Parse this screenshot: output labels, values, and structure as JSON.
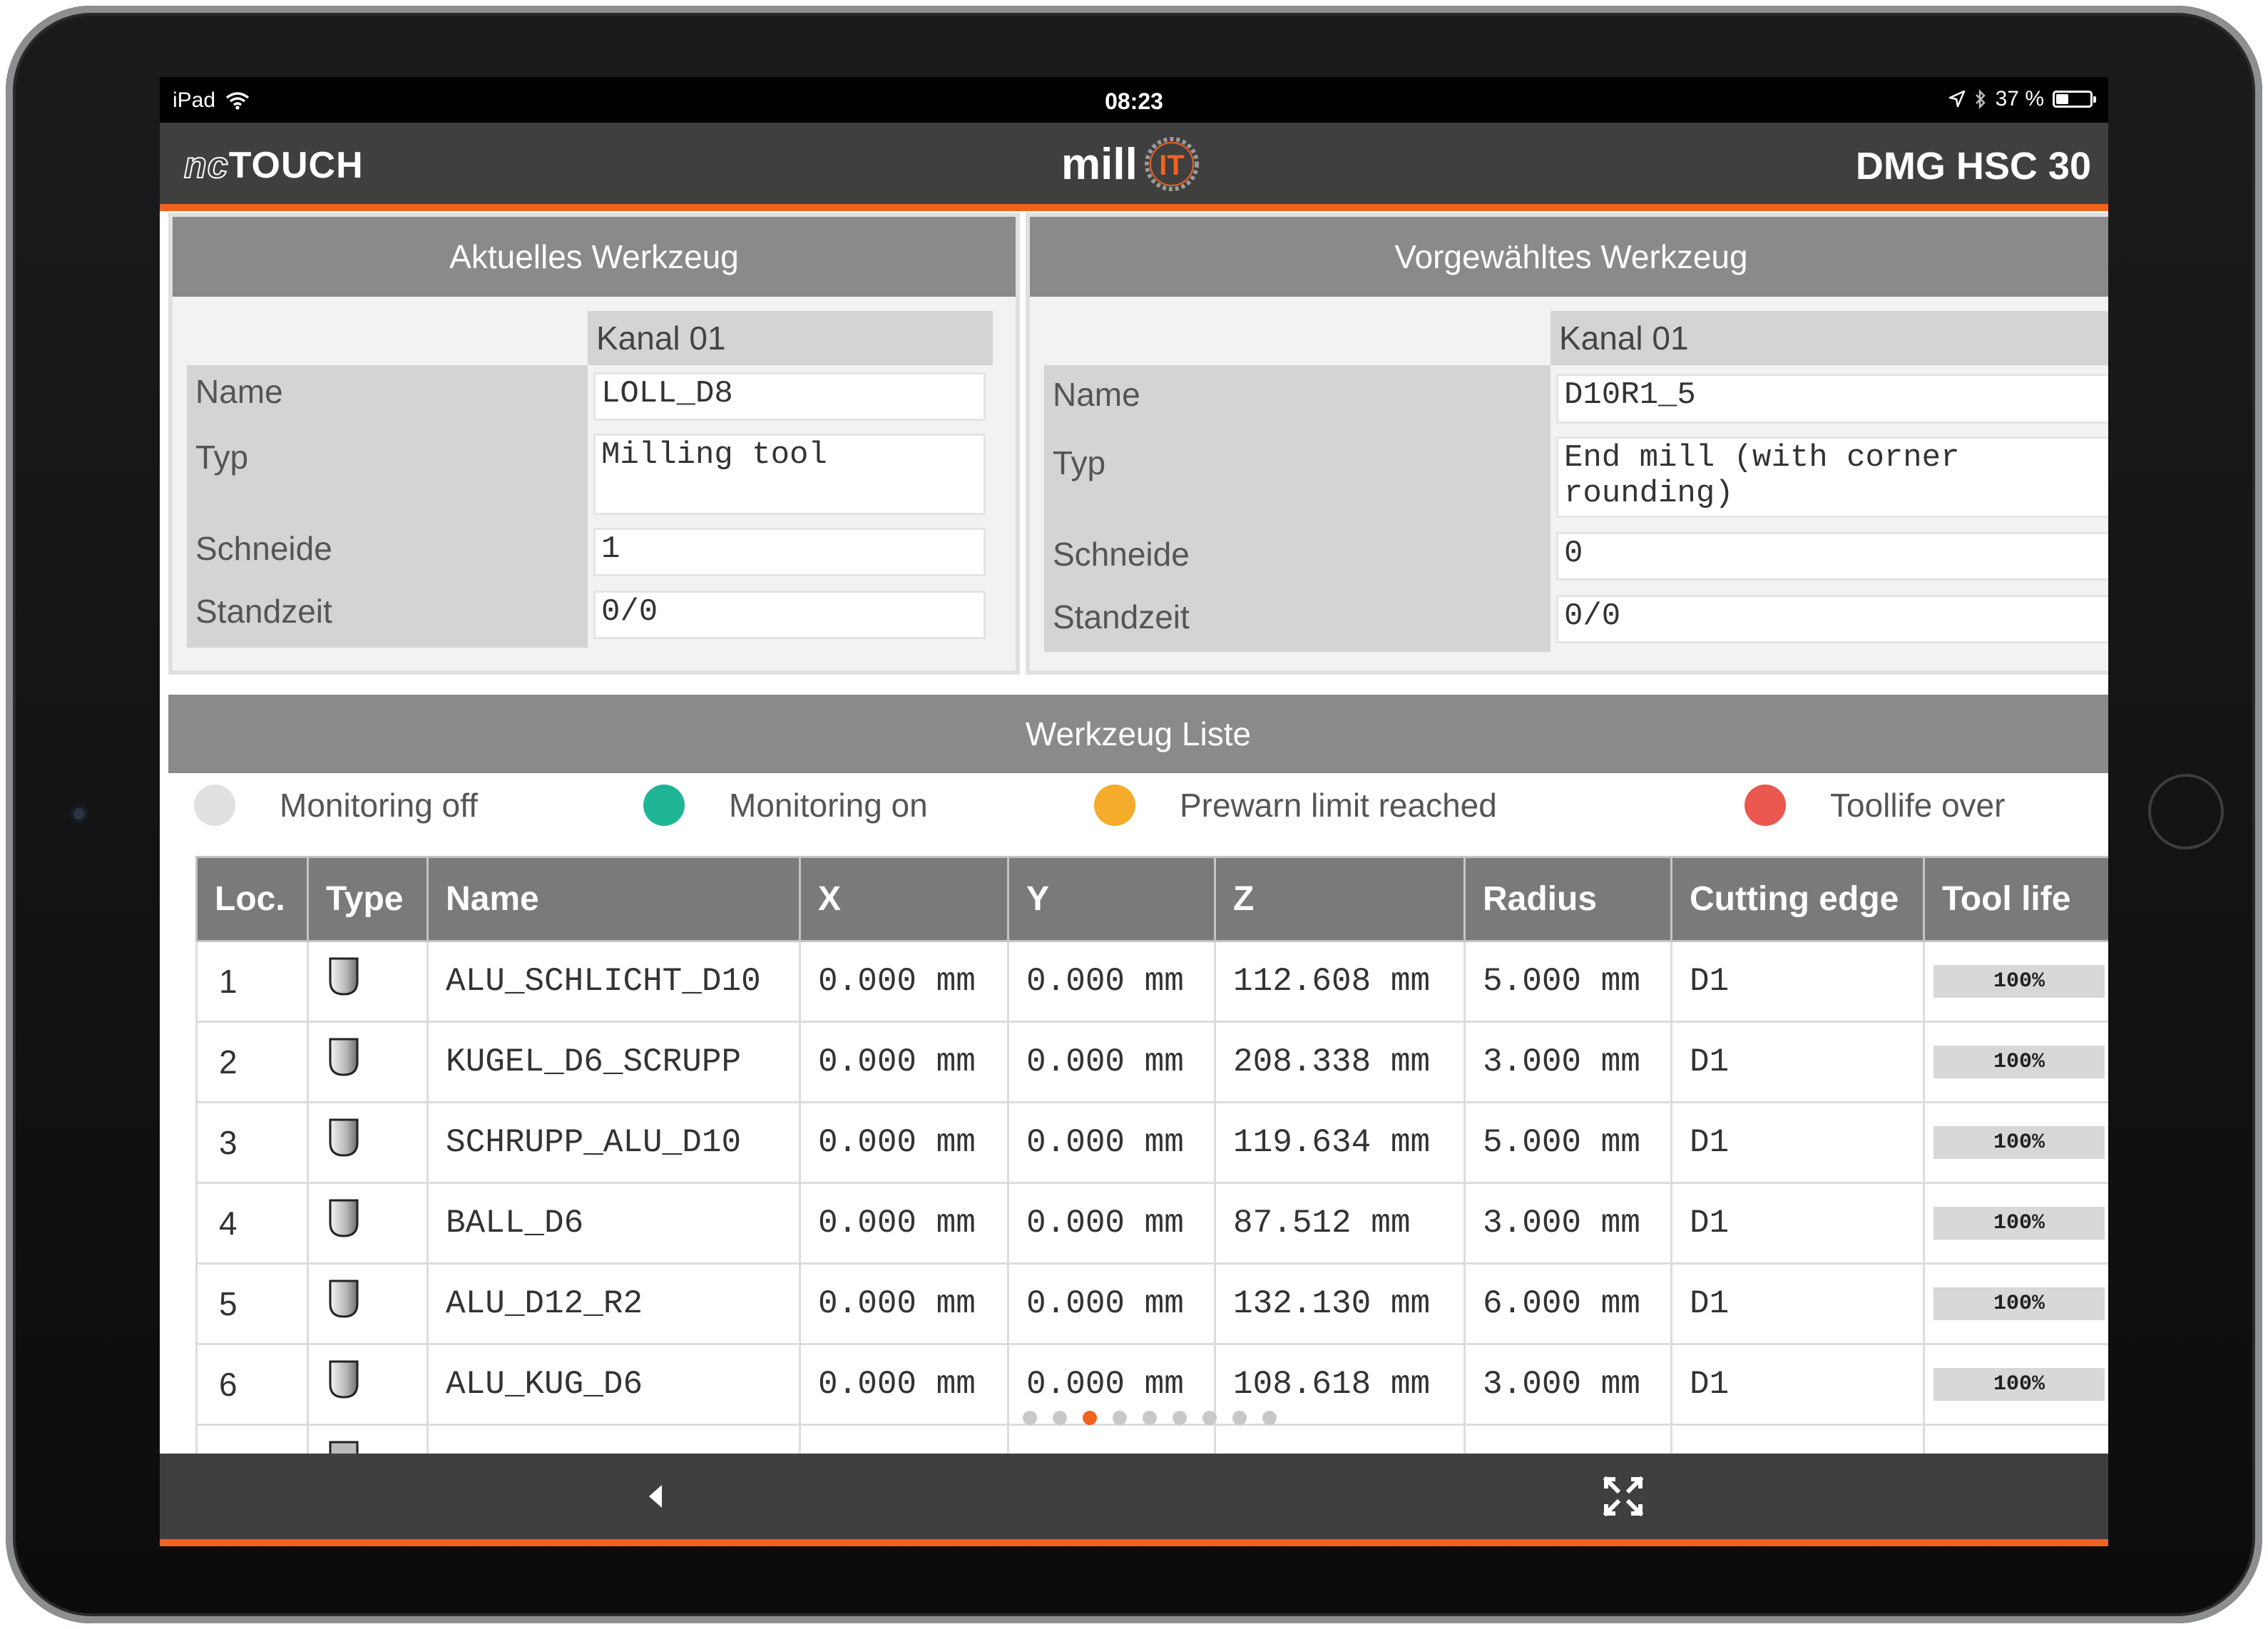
{
  "status_bar": {
    "device": "iPad",
    "time": "08:23",
    "battery": "37 %",
    "battery_fraction": 0.37
  },
  "header": {
    "logo_left_prefix": "nc",
    "logo_left": "TOUCH",
    "logo_center_text": "mill",
    "logo_center_mark": "IT",
    "machine_name": "DMG HSC 30"
  },
  "colors": {
    "accent": "#f2611d",
    "header_bg": "#3f3f3f",
    "monitoring_off": "#e0e0e0",
    "monitoring_on": "#1fb596",
    "prewarn": "#f5ac2b",
    "toollife_over": "#e9574e"
  },
  "current_tool": {
    "title": "Aktuelles Werkzeug",
    "channel": "Kanal 01",
    "labels": {
      "name": "Name",
      "type": "Typ",
      "edge": "Schneide",
      "life": "Standzeit"
    },
    "name": "LOLL_D8",
    "type": "Milling tool",
    "edge": "1",
    "life": "0/0"
  },
  "selected_tool": {
    "title": "Vorgewähltes Werkzeug",
    "channel": "Kanal 01",
    "labels": {
      "name": "Name",
      "type": "Typ",
      "edge": "Schneide",
      "life": "Standzeit"
    },
    "name": "D10R1_5",
    "type": "End mill (with corner rounding)",
    "edge": "0",
    "life": "0/0"
  },
  "tool_list": {
    "title": "Werkzeug Liste",
    "legend": [
      {
        "label": "Monitoring off",
        "color": "#e0e0e0"
      },
      {
        "label": "Monitoring on",
        "color": "#1fb596"
      },
      {
        "label": "Prewarn limit reached",
        "color": "#f5ac2b"
      },
      {
        "label": "Toollife over",
        "color": "#e9574e"
      }
    ],
    "columns": [
      "Loc.",
      "Type",
      "Name",
      "X",
      "Y",
      "Z",
      "Radius",
      "Cutting edge",
      "Tool life"
    ],
    "rows": [
      {
        "loc": "1",
        "icon": "end-mill-icon",
        "name": "ALU_SCHLICHT_D10",
        "x": "0.000  mm",
        "y": "0.000  mm",
        "z": "112.608  mm",
        "radius": "5.000  mm",
        "edge": "D1",
        "life": "100%",
        "life_fraction": 1.0
      },
      {
        "loc": "2",
        "icon": "end-mill-icon",
        "name": "KUGEL_D6_SCRUPP",
        "x": "0.000  mm",
        "y": "0.000  mm",
        "z": "208.338  mm",
        "radius": "3.000  mm",
        "edge": "D1",
        "life": "100%",
        "life_fraction": 1.0
      },
      {
        "loc": "3",
        "icon": "end-mill-icon",
        "name": "SCHRUPP_ALU_D10",
        "x": "0.000  mm",
        "y": "0.000  mm",
        "z": "119.634  mm",
        "radius": "5.000  mm",
        "edge": "D1",
        "life": "100%",
        "life_fraction": 1.0
      },
      {
        "loc": "4",
        "icon": "end-mill-icon",
        "name": "BALL_D6",
        "x": "0.000  mm",
        "y": "0.000  mm",
        "z": "87.512  mm",
        "radius": "3.000  mm",
        "edge": "D1",
        "life": "100%",
        "life_fraction": 1.0
      },
      {
        "loc": "5",
        "icon": "end-mill-icon",
        "name": "ALU_D12_R2",
        "x": "0.000  mm",
        "y": "0.000  mm",
        "z": "132.130  mm",
        "radius": "6.000  mm",
        "edge": "D1",
        "life": "100%",
        "life_fraction": 1.0
      },
      {
        "loc": "6",
        "icon": "end-mill-icon",
        "name": "ALU_KUG_D6",
        "x": "0.000  mm",
        "y": "0.000  mm",
        "z": "108.618  mm",
        "radius": "3.000  mm",
        "edge": "D1",
        "life": "100%",
        "life_fraction": 1.0
      }
    ]
  },
  "pager": {
    "pages": 9,
    "active": 3
  },
  "bottom_bar": {
    "back_icon": "chevron-left-icon",
    "fullscreen_icon": "fullscreen-icon"
  }
}
